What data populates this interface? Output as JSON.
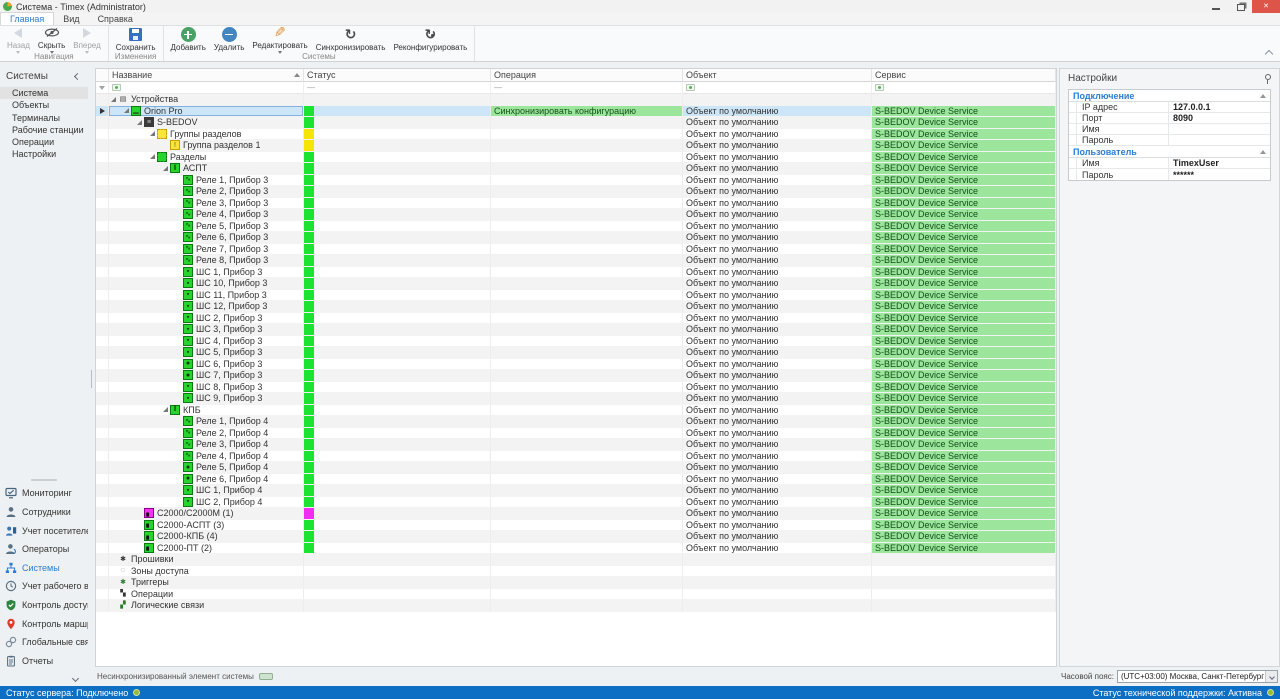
{
  "window": {
    "title": "Система - Timex (Administrator)"
  },
  "tabs": [
    {
      "label": "Главная",
      "active": true
    },
    {
      "label": "Вид",
      "active": false
    },
    {
      "label": "Справка",
      "active": false
    }
  ],
  "ribbon": {
    "groups": [
      {
        "label": "Навигация",
        "buttons": [
          {
            "label": "Назад"
          },
          {
            "label": "Скрыть"
          },
          {
            "label": "Вперед"
          }
        ]
      },
      {
        "label": "Изменения",
        "buttons": [
          {
            "label": "Сохранить"
          }
        ]
      },
      {
        "label": "Системы",
        "buttons": [
          {
            "label": "Добавить"
          },
          {
            "label": "Удалить"
          },
          {
            "label": "Редактировать"
          },
          {
            "label": "Синхронизировать"
          },
          {
            "label": "Реконфигурировать"
          }
        ]
      }
    ]
  },
  "systems_panel": {
    "header": "Системы",
    "items": [
      {
        "label": "Система",
        "selected": true
      },
      {
        "label": "Объекты",
        "selected": false
      },
      {
        "label": "Терминалы",
        "selected": false
      },
      {
        "label": "Рабочие станции",
        "selected": false
      },
      {
        "label": "Операции",
        "selected": false
      },
      {
        "label": "Настройки",
        "selected": false
      }
    ]
  },
  "nav": {
    "items": [
      {
        "label": "Мониторинг"
      },
      {
        "label": "Сотрудники"
      },
      {
        "label": "Учет посетителей"
      },
      {
        "label": "Операторы"
      },
      {
        "label": "Системы",
        "selected": true
      },
      {
        "label": "Учет рабочего време"
      },
      {
        "label": "Контроль доступа"
      },
      {
        "label": "Контроль маршрутов"
      },
      {
        "label": "Глобальные связи"
      },
      {
        "label": "Отчеты"
      }
    ]
  },
  "table": {
    "columns": [
      {
        "label": "Название",
        "sorted": "asc"
      },
      {
        "label": "Статус"
      },
      {
        "label": "Операция"
      },
      {
        "label": "Объект"
      },
      {
        "label": "Сервис"
      }
    ],
    "filter": {
      "equals": "—"
    },
    "default_object": "Объект по умолчанию",
    "default_service": "S-BEDOV Device Service",
    "rows": [
      {
        "label": "Устройства",
        "level": 0,
        "icon": "devices-icon",
        "expanded": true,
        "status": null,
        "has_object": false
      },
      {
        "label": "Orion Pro",
        "level": 1,
        "icon": "server-icon",
        "expanded": true,
        "status": "green",
        "operation": "Синхронизировать конфигурацию",
        "has_object": true,
        "selected": true
      },
      {
        "label": "S-BEDOV",
        "level": 2,
        "icon": "panel-icon",
        "expanded": true,
        "status": "green",
        "has_object": true
      },
      {
        "label": "Группы разделов",
        "level": 3,
        "icon": "partition-groups-icon",
        "expanded": true,
        "status": "yellow",
        "has_object": true
      },
      {
        "label": "Группа разделов 1",
        "level": 4,
        "icon": "partition-group-icon",
        "status": "yellow",
        "has_object": true
      },
      {
        "label": "Разделы",
        "level": 3,
        "icon": "partitions-icon",
        "expanded": true,
        "status": "green",
        "has_object": true
      },
      {
        "label": "АСПТ",
        "level": 4,
        "icon": "partition-icon",
        "expanded": true,
        "status": "green",
        "has_object": true
      },
      {
        "label": "Реле 1, Прибор 3",
        "level": 5,
        "icon": "relay-icon",
        "status": "green",
        "has_object": true
      },
      {
        "label": "Реле 2, Прибор 3",
        "level": 5,
        "icon": "relay-icon",
        "status": "green",
        "has_object": true
      },
      {
        "label": "Реле 3, Прибор 3",
        "level": 5,
        "icon": "relay-icon",
        "status": "green",
        "has_object": true
      },
      {
        "label": "Реле 4, Прибор 3",
        "level": 5,
        "icon": "relay-icon",
        "status": "green",
        "has_object": true
      },
      {
        "label": "Реле 5, Прибор 3",
        "level": 5,
        "icon": "relay-icon",
        "status": "green",
        "has_object": true
      },
      {
        "label": "Реле 6, Прибор 3",
        "level": 5,
        "icon": "relay-icon",
        "status": "green",
        "has_object": true
      },
      {
        "label": "Реле 7, Прибор 3",
        "level": 5,
        "icon": "relay-icon",
        "status": "green",
        "has_object": true
      },
      {
        "label": "Реле 8, Прибор 3",
        "level": 5,
        "icon": "relay-icon",
        "status": "green",
        "has_object": true
      },
      {
        "label": "ШС 1, Прибор 3",
        "level": 5,
        "icon": "loop-icon",
        "status": "green",
        "has_object": true
      },
      {
        "label": "ШС 10, Прибор 3",
        "level": 5,
        "icon": "loop-icon",
        "status": "green",
        "has_object": true
      },
      {
        "label": "ШС 11, Прибор 3",
        "level": 5,
        "icon": "loop-icon",
        "status": "green",
        "has_object": true
      },
      {
        "label": "ШС 12, Прибор 3",
        "level": 5,
        "icon": "loop-icon",
        "status": "green",
        "has_object": true
      },
      {
        "label": "ШС 2, Прибор 3",
        "level": 5,
        "icon": "loop-icon",
        "status": "green",
        "has_object": true
      },
      {
        "label": "ШС 3, Прибор 3",
        "level": 5,
        "icon": "loop-icon",
        "status": "green",
        "has_object": true
      },
      {
        "label": "ШС 4, Прибор 3",
        "level": 5,
        "icon": "loop-icon",
        "status": "green",
        "has_object": true
      },
      {
        "label": "ШС 5, Прибор 3",
        "level": 5,
        "icon": "loop-icon",
        "status": "green",
        "has_object": true
      },
      {
        "label": "ШС 6, Прибор 3",
        "level": 5,
        "icon": "loop-round-icon",
        "status": "green",
        "has_object": true
      },
      {
        "label": "ШС 7, Прибор 3",
        "level": 5,
        "icon": "loop-round-icon",
        "status": "green",
        "has_object": true
      },
      {
        "label": "ШС 8, Прибор 3",
        "level": 5,
        "icon": "loop-icon",
        "status": "green",
        "has_object": true
      },
      {
        "label": "ШС 9, Прибор 3",
        "level": 5,
        "icon": "loop-icon",
        "status": "green",
        "has_object": true
      },
      {
        "label": "КПБ",
        "level": 4,
        "icon": "partition-icon",
        "expanded": true,
        "status": "green",
        "has_object": true
      },
      {
        "label": "Реле 1, Прибор 4",
        "level": 5,
        "icon": "relay-icon",
        "status": "green",
        "has_object": true
      },
      {
        "label": "Реле 2, Прибор 4",
        "level": 5,
        "icon": "relay-icon",
        "status": "green",
        "has_object": true
      },
      {
        "label": "Реле 3, Прибор 4",
        "level": 5,
        "icon": "relay-icon",
        "status": "green",
        "has_object": true
      },
      {
        "label": "Реле 4, Прибор 4",
        "level": 5,
        "icon": "relay-icon",
        "status": "green",
        "has_object": true
      },
      {
        "label": "Реле 5, Прибор 4",
        "level": 5,
        "icon": "loop-round-icon",
        "status": "green",
        "has_object": true
      },
      {
        "label": "Реле 6, Прибор 4",
        "level": 5,
        "icon": "loop-round-icon",
        "status": "green",
        "has_object": true
      },
      {
        "label": "ШС 1, Прибор 4",
        "level": 5,
        "icon": "loop-icon",
        "status": "green",
        "has_object": true
      },
      {
        "label": "ШС 2, Прибор 4",
        "level": 5,
        "icon": "loop-icon",
        "status": "green",
        "has_object": true
      },
      {
        "label": "С2000/С2000М (1)",
        "level": 2,
        "icon": "c2000m-icon",
        "status": "magenta",
        "has_object": true
      },
      {
        "label": "С2000-АСПТ (3)",
        "level": 2,
        "icon": "c2000-icon",
        "status": "green",
        "has_object": true
      },
      {
        "label": "С2000-КПБ (4)",
        "level": 2,
        "icon": "c2000-icon",
        "status": "green",
        "has_object": true
      },
      {
        "label": "С2000-ПТ (2)",
        "level": 2,
        "icon": "c2000-icon",
        "status": "green",
        "has_object": true
      },
      {
        "label": "Прошивки",
        "level": 0,
        "icon": "firmware-icon",
        "status": null,
        "has_object": false
      },
      {
        "label": "Зоны доступа",
        "level": 0,
        "icon": "access-zones-icon",
        "status": null,
        "has_object": false
      },
      {
        "label": "Триггеры",
        "level": 0,
        "icon": "triggers-icon",
        "status": null,
        "has_object": false
      },
      {
        "label": "Операции",
        "level": 0,
        "icon": "operations-icon",
        "status": null,
        "has_object": false
      },
      {
        "label": "Логические связи",
        "level": 0,
        "icon": "logic-links-icon",
        "status": null,
        "has_object": false
      }
    ]
  },
  "settings": {
    "title": "Настройки",
    "groups": [
      {
        "label": "Подключение",
        "fields": [
          {
            "label": "IP адрес",
            "value": "127.0.0.1"
          },
          {
            "label": "Порт",
            "value": "8090"
          },
          {
            "label": "Имя",
            "value": ""
          },
          {
            "label": "Пароль",
            "value": ""
          }
        ]
      },
      {
        "label": "Пользователь",
        "fields": [
          {
            "label": "Имя",
            "value": "TimexUser"
          },
          {
            "label": "Пароль",
            "value": "******"
          }
        ]
      }
    ],
    "timezone": {
      "label": "Часовой пояс:",
      "value": "(UTC+03:00) Москва, Санкт-Петербург"
    }
  },
  "legend": {
    "label": "Несинхронизированный элемент системы"
  },
  "statusbar": {
    "left": "Статус сервера: Подключено",
    "right": "Статус технической поддержки: Активна"
  },
  "colors": {
    "status_green": "#1ce232",
    "status_yellow": "#f6e405",
    "status_magenta": "#f02df0",
    "cell_green": "#9be59c",
    "selection_blue": "#cde6f7",
    "statusbar_blue": "#0c6fc3",
    "accent_blue": "#2b7cd3"
  }
}
